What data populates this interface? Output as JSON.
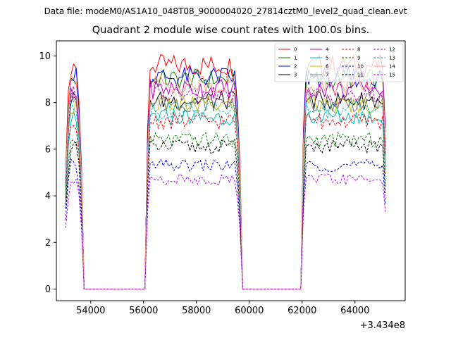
{
  "header": {
    "suptitle": "Data file: modeM0/AS1A10_048T08_9000004020_27814cztM0_level2_quad_clean.evt"
  },
  "chart_data": {
    "type": "line",
    "title": "Quadrant 2 module wise count rates with 100.0s bins.",
    "xlabel": "",
    "ylabel": "",
    "x_offset_label": "+3.434e8",
    "xlim": [
      52700,
      65900
    ],
    "ylim": [
      -0.5,
      10.65
    ],
    "x_ticks": [
      54000,
      56000,
      58000,
      60000,
      62000,
      64000
    ],
    "x_tick_labels": [
      "54000",
      "56000",
      "58000",
      "60000",
      "62000",
      "64000"
    ],
    "y_ticks": [
      0,
      2,
      4,
      6,
      8,
      10
    ],
    "y_tick_labels": [
      "0",
      "2",
      "4",
      "6",
      "8",
      "10"
    ],
    "legend_location": "top-right",
    "segments": [
      {
        "start": 53050,
        "end": 53650
      },
      {
        "start": 56100,
        "end": 59650
      },
      {
        "start": 62000,
        "end": 65200
      }
    ],
    "gap_value": 0,
    "bin_width": 100,
    "series": [
      {
        "name": "0",
        "color": "#ff0000",
        "dashed": false,
        "level": 9.6
      },
      {
        "name": "1",
        "color": "#008000",
        "dashed": false,
        "level": 9.0
      },
      {
        "name": "2",
        "color": "#0000ff",
        "dashed": false,
        "level": 9.1
      },
      {
        "name": "3",
        "color": "#000000",
        "dashed": false,
        "level": 8.1
      },
      {
        "name": "4",
        "color": "#bf00bf",
        "dashed": false,
        "level": 8.6
      },
      {
        "name": "5",
        "color": "#00bfbf",
        "dashed": false,
        "level": 7.4
      },
      {
        "name": "6",
        "color": "#bfbf00",
        "dashed": false,
        "level": 7.9
      },
      {
        "name": "7",
        "color": "#808080",
        "dashed": false,
        "level": 8.0
      },
      {
        "name": "8",
        "color": "#ff0000",
        "dashed": true,
        "level": 7.2
      },
      {
        "name": "9",
        "color": "#008000",
        "dashed": true,
        "level": 6.4
      },
      {
        "name": "10",
        "color": "#0000ff",
        "dashed": true,
        "level": 5.3
      },
      {
        "name": "11",
        "color": "#000000",
        "dashed": true,
        "level": 6.1
      },
      {
        "name": "12",
        "color": "#bf00bf",
        "dashed": true,
        "level": 8.3
      },
      {
        "name": "13",
        "color": "#00bfbf",
        "dashed": true,
        "level": 7.7
      },
      {
        "name": "14",
        "color": "#ffa07a",
        "dashed": false,
        "level": 8.8
      },
      {
        "name": "15",
        "color": "#bf00ff",
        "dashed": true,
        "level": 4.7
      }
    ]
  }
}
